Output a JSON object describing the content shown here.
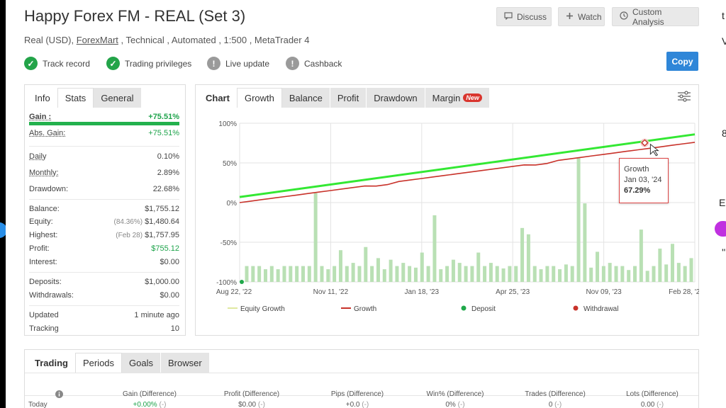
{
  "header": {
    "title": "Happy Forex FM - REAL (Set 3)",
    "subtitle_pre": "Real (USD), ",
    "broker_link": "ForexMart",
    "subtitle_post": " , Technical , Automated , 1:500 , MetaTrader 4",
    "discuss": "Discuss",
    "watch": "Watch",
    "custom_analysis": "Custom Analysis",
    "copy": "Copy"
  },
  "badges": [
    {
      "label": "Track record",
      "status": "verified",
      "icon": "check-icon"
    },
    {
      "label": "Trading privileges",
      "status": "verified",
      "icon": "check-icon"
    },
    {
      "label": "Live update",
      "status": "not-verified",
      "icon": "exclamation-icon"
    },
    {
      "label": "Cashback",
      "status": "not-verified",
      "icon": "exclamation-icon"
    }
  ],
  "left_tabs": [
    "Info",
    "Stats",
    "General"
  ],
  "stats": {
    "gain_label": "Gain :",
    "gain_value": "+75.51%",
    "abs_gain_label": "Abs. Gain:",
    "abs_gain_value": "+75.51%",
    "daily_label": "Daily",
    "daily_value": "0.10%",
    "monthly_label": "Monthly:",
    "monthly_value": "2.89%",
    "drawdown_label": "Drawdown:",
    "drawdown_value": "22.68%",
    "balance_label": "Balance:",
    "balance_value": "$1,755.12",
    "equity_label": "Equity:",
    "equity_note": "(84.36%)",
    "equity_value": "$1,480.64",
    "highest_label": "Highest:",
    "highest_note": "(Feb 28)",
    "highest_value": "$1,757.95",
    "profit_label": "Profit:",
    "profit_value": "$755.12",
    "interest_label": "Interest:",
    "interest_value": "$0.00",
    "deposits_label": "Deposits:",
    "deposits_value": "$1,000.00",
    "withdrawals_label": "Withdrawals:",
    "withdrawals_value": "$0.00",
    "updated_label": "Updated",
    "updated_value": "1 minute ago",
    "tracking_label": "Tracking",
    "tracking_value": "10"
  },
  "chart_tabs": [
    "Chart",
    "Growth",
    "Balance",
    "Profit",
    "Drawdown",
    "Margin"
  ],
  "new_badge": "New",
  "tooltip": {
    "series": "Growth",
    "date": "Jan 03, '24",
    "value": "67.29%"
  },
  "chart_data": {
    "type": "line",
    "x_tick_labels": [
      "Aug 22, '22",
      "Nov 11, '22",
      "Jan 18, '23",
      "Apr 25, '23",
      "Nov 09, '23",
      "Feb 28, '24"
    ],
    "y_tick_labels": [
      "100%",
      "50%",
      "0%",
      "-50%",
      "-100%"
    ],
    "ylim": [
      -100,
      100
    ],
    "series": [
      {
        "name": "Equity Growth",
        "color": "#33e833",
        "start": 7,
        "end": 86
      },
      {
        "name": "Growth",
        "color": "#c8322a",
        "start": 0,
        "end": 76
      },
      {
        "name": "Deposit",
        "color": "#1fa84a"
      },
      {
        "name": "Withdrawal",
        "color": "#c8322a"
      }
    ],
    "bar_values": [
      -80,
      -80,
      -80,
      -84,
      -80,
      -84,
      -80,
      -80,
      -80,
      -80,
      -80,
      12,
      -80,
      -84,
      -80,
      -60,
      -80,
      -76,
      -80,
      -56,
      -80,
      -70,
      -84,
      -72,
      -80,
      -76,
      -80,
      -82,
      -63,
      -80,
      -16,
      -84,
      -80,
      -72,
      -76,
      -80,
      -80,
      -63,
      -80,
      -76,
      -80,
      -83,
      -80,
      -80,
      -32,
      -40,
      -80,
      -84,
      -80,
      -80,
      -84,
      -78,
      -80,
      56,
      -1,
      -82,
      -62,
      -80,
      -76,
      -80,
      -80,
      -85,
      -80,
      -34,
      -86,
      -80,
      -58,
      -78,
      -52,
      -76,
      -80,
      -70
    ],
    "x_start": "Aug 22, '22",
    "x_end": "Feb 28, '24"
  },
  "bottom": {
    "tabs": [
      "Trading",
      "Periods",
      "Goals",
      "Browser"
    ],
    "columns": [
      "Gain (Difference)",
      "Profit (Difference)",
      "Pips (Difference)",
      "Win% (Difference)",
      "Trades (Difference)",
      "Lots (Difference)"
    ],
    "row_label": "Today",
    "row_values": [
      "+0.00%",
      "$0.00",
      "+0.0",
      "0%",
      "0",
      "0.00"
    ],
    "diff": "(-)"
  },
  "right_strip": [
    "t",
    "V",
    "8",
    "E",
    "''"
  ]
}
